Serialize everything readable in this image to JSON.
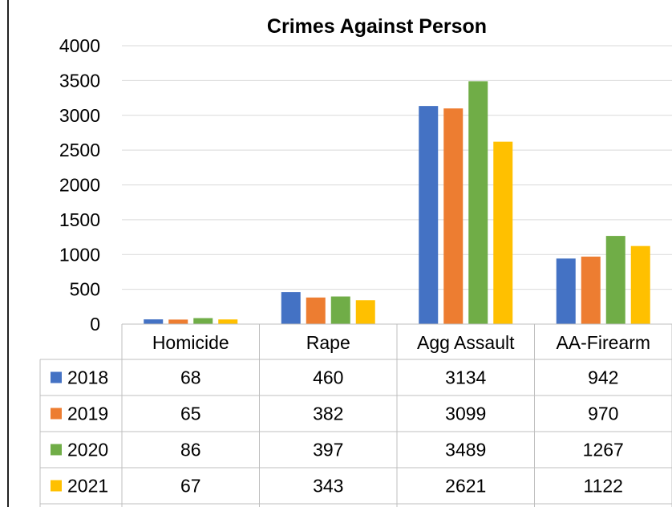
{
  "chart_data": {
    "type": "bar",
    "title": "Crimes Against Person",
    "categories": [
      "Homicide",
      "Rape",
      "Agg Assault",
      "AA-Firearm"
    ],
    "series": [
      {
        "name": "2018",
        "color": "#4472C4",
        "values": [
          68,
          460,
          3134,
          942
        ]
      },
      {
        "name": "2019",
        "color": "#ED7D31",
        "values": [
          65,
          382,
          3099,
          970
        ]
      },
      {
        "name": "2020",
        "color": "#70AD47",
        "values": [
          86,
          397,
          3489,
          1267
        ]
      },
      {
        "name": "2021",
        "color": "#FFC000",
        "values": [
          67,
          343,
          2621,
          1122
        ]
      }
    ],
    "ylim": [
      0,
      4000
    ],
    "yticks": [
      "4000",
      "3500",
      "3000",
      "2500",
      "2000",
      "1500",
      "1000",
      "500",
      "0"
    ],
    "grid": true,
    "legend": "data-table"
  }
}
